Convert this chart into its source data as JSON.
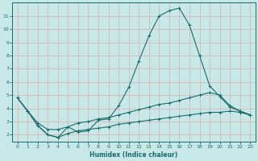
{
  "xlabel": "Humidex (Indice chaleur)",
  "bg_color": "#c8e8e8",
  "grid_color": "#d4b8b8",
  "line_color": "#1a6b6b",
  "xlim": [
    -0.5,
    23.5
  ],
  "ylim": [
    1.5,
    12.0
  ],
  "xticks": [
    0,
    1,
    2,
    3,
    4,
    5,
    6,
    7,
    8,
    9,
    10,
    11,
    12,
    13,
    14,
    15,
    16,
    17,
    18,
    19,
    20,
    21,
    22,
    23
  ],
  "yticks": [
    2,
    3,
    4,
    5,
    6,
    7,
    8,
    9,
    10,
    11
  ],
  "line1_x": [
    0,
    1,
    2,
    3,
    4,
    5,
    6,
    7,
    8,
    9,
    10,
    11,
    12,
    13,
    14,
    15,
    16,
    17,
    18,
    19,
    20,
    21,
    22,
    23
  ],
  "line1_y": [
    4.8,
    3.8,
    2.7,
    2.0,
    1.8,
    2.6,
    2.2,
    2.3,
    3.1,
    3.2,
    4.2,
    5.6,
    7.6,
    9.5,
    11.0,
    11.4,
    11.6,
    10.3,
    8.0,
    5.7,
    4.9,
    4.1,
    3.8,
    3.5
  ],
  "line2_x": [
    0,
    1,
    2,
    3,
    4,
    5,
    6,
    7,
    8,
    9,
    10,
    11,
    12,
    13,
    14,
    15,
    16,
    17,
    18,
    19,
    20,
    21,
    22,
    23
  ],
  "line2_y": [
    4.8,
    3.8,
    2.9,
    2.4,
    2.4,
    2.6,
    2.9,
    3.0,
    3.2,
    3.3,
    3.5,
    3.7,
    3.9,
    4.1,
    4.3,
    4.4,
    4.6,
    4.8,
    5.0,
    5.2,
    5.0,
    4.2,
    3.8,
    3.5
  ],
  "line3_x": [
    0,
    1,
    2,
    3,
    4,
    5,
    6,
    7,
    8,
    9,
    10,
    11,
    12,
    13,
    14,
    15,
    16,
    17,
    18,
    19,
    20,
    21,
    22,
    23
  ],
  "line3_y": [
    4.8,
    3.8,
    2.7,
    2.0,
    1.8,
    2.1,
    2.3,
    2.4,
    2.5,
    2.6,
    2.8,
    2.9,
    3.0,
    3.1,
    3.2,
    3.3,
    3.4,
    3.5,
    3.6,
    3.7,
    3.7,
    3.8,
    3.7,
    3.5
  ]
}
